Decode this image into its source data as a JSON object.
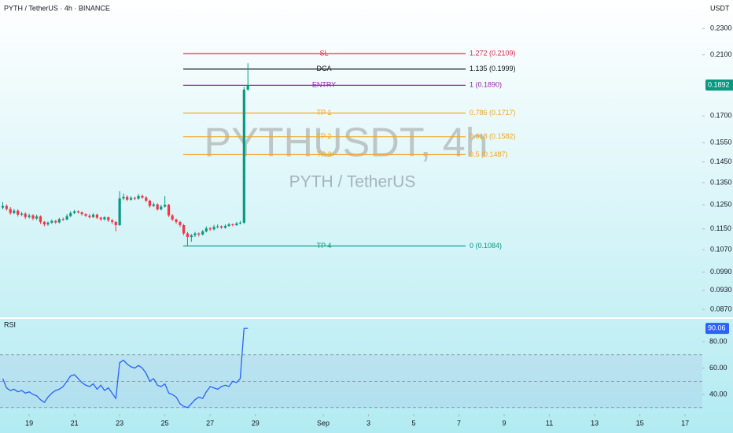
{
  "chart_data": [
    {
      "type": "candlestick",
      "title": "PYTH / TetherUS · 4h · BINANCE",
      "y_label": "USDT",
      "watermark": "PYTHUSDT, 4h",
      "watermark_sub": "PYTH / TetherUS",
      "up_color": "#089981",
      "down_color": "#f23645",
      "log_scale": true,
      "x": [
        17.83,
        18,
        18.17,
        18.33,
        18.5,
        18.67,
        18.83,
        19,
        19.17,
        19.33,
        19.5,
        19.67,
        19.83,
        20,
        20.17,
        20.33,
        20.5,
        20.67,
        20.83,
        21,
        21.17,
        21.33,
        21.5,
        21.67,
        21.83,
        22,
        22.17,
        22.33,
        22.5,
        22.67,
        22.83,
        23,
        23.17,
        23.33,
        23.5,
        23.67,
        23.83,
        24,
        24.17,
        24.33,
        24.5,
        24.67,
        24.83,
        25,
        25.17,
        25.33,
        25.5,
        25.67,
        25.83,
        26,
        26.17,
        26.33,
        26.5,
        26.67,
        26.83,
        27,
        27.17,
        27.33,
        27.5,
        27.67,
        27.83,
        28,
        28.17,
        28.33,
        28.5,
        28.67
      ],
      "open": [
        0.1238,
        0.1245,
        0.1232,
        0.1215,
        0.1225,
        0.1208,
        0.1212,
        0.1198,
        0.1205,
        0.1192,
        0.1201,
        0.1178,
        0.1168,
        0.1175,
        0.1182,
        0.1176,
        0.119,
        0.1188,
        0.1202,
        0.1215,
        0.1222,
        0.1218,
        0.121,
        0.1204,
        0.1198,
        0.1208,
        0.1195,
        0.1189,
        0.1197,
        0.1185,
        0.1178,
        0.1165,
        0.1278,
        0.1285,
        0.1272,
        0.128,
        0.1276,
        0.1289,
        0.1282,
        0.1268,
        0.1245,
        0.1252,
        0.123,
        0.1242,
        0.125,
        0.1205,
        0.1188,
        0.1178,
        0.1165,
        0.1132,
        0.1118,
        0.1125,
        0.1132,
        0.1128,
        0.114,
        0.1152,
        0.1148,
        0.1158,
        0.116,
        0.1155,
        0.1162,
        0.1168,
        0.1165,
        0.1172,
        0.1175,
        0.1862
      ],
      "high": [
        0.1262,
        0.1252,
        0.124,
        0.1232,
        0.123,
        0.122,
        0.1218,
        0.1212,
        0.121,
        0.1208,
        0.1205,
        0.1182,
        0.118,
        0.1188,
        0.1186,
        0.1195,
        0.1196,
        0.121,
        0.1222,
        0.1228,
        0.1226,
        0.1222,
        0.1214,
        0.121,
        0.1214,
        0.1212,
        0.12,
        0.1202,
        0.12,
        0.119,
        0.1182,
        0.131,
        0.13,
        0.1292,
        0.1288,
        0.1286,
        0.1298,
        0.1295,
        0.1288,
        0.1272,
        0.126,
        0.1256,
        0.125,
        0.1288,
        0.1254,
        0.121,
        0.1192,
        0.1182,
        0.117,
        0.1138,
        0.113,
        0.1138,
        0.1136,
        0.1146,
        0.116,
        0.1158,
        0.1166,
        0.1168,
        0.1164,
        0.1168,
        0.1174,
        0.1172,
        0.1178,
        0.1182,
        0.188,
        0.204
      ],
      "low": [
        0.123,
        0.1225,
        0.1208,
        0.121,
        0.12,
        0.1202,
        0.119,
        0.1192,
        0.1185,
        0.1186,
        0.117,
        0.116,
        0.1162,
        0.117,
        0.117,
        0.1172,
        0.1182,
        0.1185,
        0.1198,
        0.121,
        0.1212,
        0.1204,
        0.1198,
        0.1192,
        0.1194,
        0.119,
        0.1182,
        0.1184,
        0.1178,
        0.117,
        0.114,
        0.1162,
        0.127,
        0.1266,
        0.1268,
        0.127,
        0.1272,
        0.1276,
        0.1262,
        0.1238,
        0.124,
        0.1225,
        0.1226,
        0.1238,
        0.1198,
        0.1182,
        0.117,
        0.1158,
        0.1125,
        0.1084,
        0.11,
        0.1118,
        0.112,
        0.1124,
        0.1136,
        0.1142,
        0.1144,
        0.1152,
        0.115,
        0.115,
        0.1158,
        0.116,
        0.1162,
        0.1168,
        0.117,
        0.1855
      ],
      "close": [
        0.1245,
        0.1232,
        0.1215,
        0.1225,
        0.1208,
        0.1212,
        0.1198,
        0.1205,
        0.1192,
        0.1201,
        0.1178,
        0.1168,
        0.1175,
        0.1182,
        0.1176,
        0.119,
        0.1188,
        0.1202,
        0.1215,
        0.1222,
        0.1218,
        0.121,
        0.1204,
        0.1198,
        0.1208,
        0.1195,
        0.1189,
        0.1197,
        0.1185,
        0.1178,
        0.1165,
        0.1278,
        0.1285,
        0.1272,
        0.128,
        0.1276,
        0.1289,
        0.1282,
        0.1268,
        0.1245,
        0.1252,
        0.123,
        0.1242,
        0.125,
        0.1205,
        0.1188,
        0.1178,
        0.1165,
        0.1132,
        0.1118,
        0.1125,
        0.1132,
        0.1128,
        0.114,
        0.1152,
        0.1148,
        0.1158,
        0.116,
        0.1155,
        0.1162,
        0.1168,
        0.1165,
        0.1172,
        0.1175,
        0.1862,
        0.1892
      ],
      "xlim": [
        17.71,
        48.76
      ],
      "xticks": [
        19,
        21,
        23,
        25,
        27,
        29,
        {
          "value": 32,
          "label": "Sep"
        },
        {
          "value": 34,
          "label": "3"
        },
        {
          "value": 36,
          "label": "5"
        },
        {
          "value": 38,
          "label": "7"
        },
        {
          "value": 40,
          "label": "9"
        },
        {
          "value": 42,
          "label": "11"
        },
        {
          "value": 44,
          "label": "13"
        },
        {
          "value": 46,
          "label": "15"
        },
        {
          "value": 48,
          "label": "17"
        }
      ],
      "ylim": [
        0.0847,
        0.2539
      ],
      "yticks": [
        {
          "value": 0.23,
          "label": "0.2300"
        },
        {
          "value": 0.21,
          "label": "0.2100"
        },
        {
          "value": 0.17,
          "label": "0.1700"
        },
        {
          "value": 0.155,
          "label": "0.1550"
        },
        {
          "value": 0.145,
          "label": "0.1450"
        },
        {
          "value": 0.135,
          "label": "0.1350"
        },
        {
          "value": 0.125,
          "label": "0.1250"
        },
        {
          "value": 0.115,
          "label": "0.1150"
        },
        {
          "value": 0.107,
          "label": "0.1070"
        },
        {
          "value": 0.099,
          "label": "0.0990"
        },
        {
          "value": 0.093,
          "label": "0.0930"
        },
        {
          "value": 0.087,
          "label": "0.0870"
        }
      ],
      "levels": [
        {
          "name": "SL",
          "label": "1.272 (0.2109)",
          "price": 0.2109,
          "color": "#e0304a"
        },
        {
          "name": "DCA",
          "label": "1.135 (0.1999)",
          "price": 0.1999,
          "color": "#131722"
        },
        {
          "name": "ENTRY",
          "label": "1 (0.1890)",
          "price": 0.189,
          "color": "#9c27b0"
        },
        {
          "name": "TP 1",
          "label": "0.786 (0.1717)",
          "price": 0.1717,
          "color": "#f5a623"
        },
        {
          "name": "TP 2",
          "label": "0.618 (0.1582)",
          "price": 0.1582,
          "color": "#f5a623"
        },
        {
          "name": "TP 3",
          "label": "0.5 (0.1487)",
          "price": 0.1487,
          "color": "#f5a623"
        },
        {
          "name": "TP 4",
          "label": "0 (0.1084)",
          "price": 0.1084,
          "color": "#089981"
        }
      ]
    },
    {
      "type": "line",
      "title": "RSI",
      "color": "#2962ff",
      "values": [
        52,
        45,
        43,
        44,
        42,
        43,
        41,
        42,
        40,
        39,
        36,
        34,
        38,
        41,
        43,
        44,
        46,
        50,
        54,
        55,
        52,
        49,
        47,
        46,
        48,
        44,
        47,
        43,
        45,
        41,
        37,
        64,
        66,
        63,
        61,
        60,
        62,
        60,
        56,
        50,
        52,
        47,
        46,
        48,
        41,
        40,
        38,
        33,
        31,
        30,
        33,
        36,
        38,
        37,
        42,
        46,
        45,
        44,
        46,
        47,
        46,
        50,
        49,
        52,
        90,
        90.06
      ],
      "ylim": [
        28.7,
        97.3
      ],
      "yticks": [
        {
          "value": 80,
          "label": "80.00"
        },
        {
          "value": 60,
          "label": "60.00"
        },
        {
          "value": 40,
          "label": "40.00"
        }
      ],
      "bands": [
        70,
        50,
        30
      ]
    }
  ]
}
